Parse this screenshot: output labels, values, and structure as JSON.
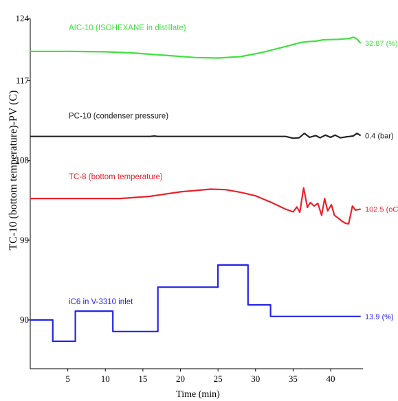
{
  "chart_data": {
    "type": "line",
    "xlabel": "Time (min)",
    "ylabel": "TC-10 (bottom temperature)-PV (C)",
    "x_ticks": [
      5,
      10,
      15,
      20,
      25,
      30,
      35,
      40
    ],
    "y_ticks": [
      90,
      99,
      108,
      117,
      124
    ],
    "xlim": [
      0,
      44.3
    ],
    "ylim": [
      84.5,
      124
    ],
    "grid": false,
    "colors": {
      "AIC-10": "#3ee13e",
      "PC-10": "#222222",
      "TC-8": "#e8232b",
      "iC6": "#2424e6"
    },
    "series": [
      {
        "name": "AIC-10 (ISOHEXANE in distillate)",
        "end_label": "32.87 (%)",
        "color_key": "AIC-10",
        "points": [
          [
            0,
            120.3
          ],
          [
            5,
            120.3
          ],
          [
            10,
            120.25
          ],
          [
            14,
            120.1
          ],
          [
            18,
            119.85
          ],
          [
            22,
            119.6
          ],
          [
            25,
            119.55
          ],
          [
            28,
            119.7
          ],
          [
            31,
            120.2
          ],
          [
            34,
            120.85
          ],
          [
            36,
            121.3
          ],
          [
            37,
            121.4
          ],
          [
            38,
            121.45
          ],
          [
            39,
            121.6
          ],
          [
            41,
            121.65
          ],
          [
            42.5,
            121.75
          ],
          [
            43,
            121.9
          ],
          [
            43.5,
            121.7
          ],
          [
            44,
            121.2
          ]
        ]
      },
      {
        "name": "PC-10 (condenser pressure)",
        "end_label": "0.4 (bar)",
        "color_key": "PC-10",
        "points": [
          [
            0,
            110.7
          ],
          [
            16,
            110.7
          ],
          [
            16.5,
            110.75
          ],
          [
            17,
            110.7
          ],
          [
            34,
            110.7
          ],
          [
            35,
            110.5
          ],
          [
            35.8,
            110.55
          ],
          [
            36.5,
            111.05
          ],
          [
            37.2,
            110.6
          ],
          [
            38,
            110.8
          ],
          [
            38.6,
            110.55
          ],
          [
            39.3,
            110.85
          ],
          [
            40,
            110.6
          ],
          [
            40.6,
            110.85
          ],
          [
            41.3,
            110.55
          ],
          [
            42,
            110.65
          ],
          [
            43,
            110.75
          ],
          [
            43.5,
            111.05
          ],
          [
            44,
            110.8
          ]
        ]
      },
      {
        "name": "TC-8 (bottom temperature)",
        "end_label": "102.5 (oC)",
        "color_key": "TC-8",
        "points": [
          [
            0,
            103.7
          ],
          [
            12,
            103.7
          ],
          [
            16,
            103.95
          ],
          [
            20,
            104.45
          ],
          [
            24,
            104.75
          ],
          [
            26,
            104.7
          ],
          [
            28,
            104.4
          ],
          [
            30,
            104.0
          ],
          [
            32,
            103.3
          ],
          [
            34,
            102.5
          ],
          [
            35,
            102.2
          ],
          [
            35.5,
            102.75
          ],
          [
            35.9,
            102.15
          ],
          [
            36.4,
            104.9
          ],
          [
            36.9,
            102.7
          ],
          [
            37.3,
            103.25
          ],
          [
            37.8,
            102.85
          ],
          [
            38.3,
            103.15
          ],
          [
            38.8,
            101.8
          ],
          [
            39.2,
            103.7
          ],
          [
            39.6,
            102.3
          ],
          [
            40.1,
            103.0
          ],
          [
            40.5,
            101.8
          ],
          [
            41.0,
            101.5
          ],
          [
            41.5,
            101.15
          ],
          [
            42.0,
            100.9
          ],
          [
            42.4,
            100.85
          ],
          [
            42.9,
            102.85
          ],
          [
            43.3,
            102.4
          ],
          [
            44,
            102.5
          ]
        ]
      },
      {
        "name": "iC6 in V-3310 inlet",
        "end_label": "13.9 (%)",
        "color_key": "iC6",
        "points": [
          [
            0,
            90.0
          ],
          [
            3,
            90.0
          ],
          [
            3,
            87.6
          ],
          [
            6,
            87.6
          ],
          [
            6,
            91.0
          ],
          [
            11,
            91.0
          ],
          [
            11,
            88.7
          ],
          [
            17,
            88.7
          ],
          [
            17,
            93.7
          ],
          [
            25,
            93.7
          ],
          [
            25,
            96.2
          ],
          [
            29,
            96.2
          ],
          [
            29,
            91.7
          ],
          [
            32,
            91.7
          ],
          [
            32,
            90.4
          ],
          [
            44,
            90.4
          ]
        ]
      }
    ]
  }
}
